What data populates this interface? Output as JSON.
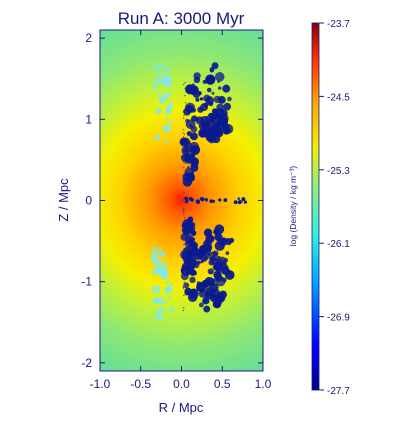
{
  "chart_data": {
    "type": "heatmap",
    "title": "Run A:  3000 Myr",
    "xlabel": "R / Mpc",
    "ylabel": "Z / Mpc",
    "xlim": [
      -1.0,
      1.0
    ],
    "ylim": [
      -2.1,
      2.1
    ],
    "x_ticks": [
      "-1.0",
      "-0.5",
      "0.0",
      "0.5",
      "1.0"
    ],
    "y_ticks": [
      "2",
      "1",
      "0",
      "-1",
      "-2"
    ],
    "colorbar": {
      "label": "log (Density / kg m⁻³)",
      "range": [
        -27.7,
        -23.7
      ],
      "ticks": [
        "-23.7",
        "-24.5",
        "-25.3",
        "-26.1",
        "-26.9",
        "-27.7"
      ],
      "colormap": "jet"
    },
    "grid": false,
    "description_values": {
      "core_log_density": -24.0,
      "background_log_density": -25.9
    }
  },
  "colors": {
    "text": "#1a1a7a",
    "axis": "#1a1a7a",
    "core": "#ff2a00",
    "background": "#7fe07a",
    "bubbles": "#0a1a8f"
  }
}
